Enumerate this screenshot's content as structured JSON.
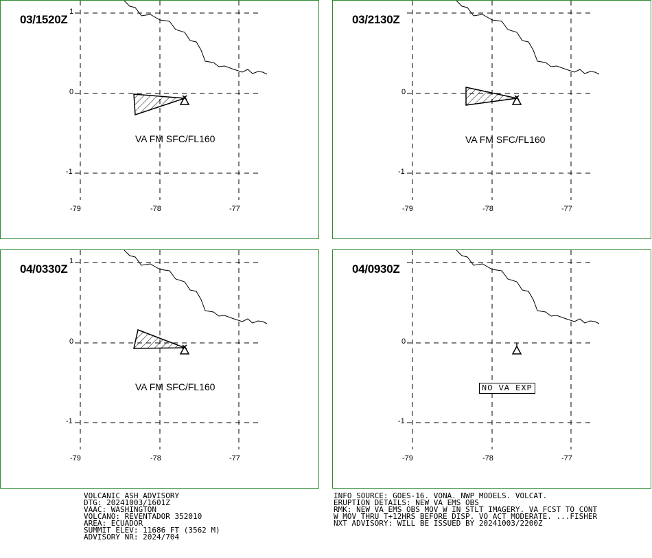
{
  "panels": [
    {
      "time": "03/1520Z",
      "label": "VA FM SFC/FL160",
      "plume": "tri1"
    },
    {
      "time": "03/2130Z",
      "label": "VA FM SFC/FL160",
      "plume": "tri2"
    },
    {
      "time": "04/0330Z",
      "label": "VA FM SFC/FL160",
      "plume": "tri3"
    },
    {
      "time": "04/0930Z",
      "label": "NO VA EXP",
      "plume": "none"
    }
  ],
  "axes": {
    "lat_labels": [
      "1",
      "0",
      "-1"
    ],
    "lon_labels": [
      "-79",
      "-78",
      "-77"
    ]
  },
  "advisory_left": [
    "VOLCANIC ASH ADVISORY",
    "DTG: 20241003/1601Z",
    "VAAC: WASHINGTON",
    "VOLCANO: REVENTADOR 352010",
    "AREA: ECUADOR",
    "SUMMIT ELEV: 11686 FT (3562 M)",
    "ADVISORY NR: 2024/704"
  ],
  "advisory_right": [
    "INFO SOURCE: GOES-16. VONA. NWP MODELS. VOLCAT.",
    "ERUPTION DETAILS: NEW VA EMS OBS",
    "RMK: NEW VA EMS OBS MOV W IN STLT IMAGERY. VA FCST TO CONT",
    "W MOV THRU T+12HRS BEFORE DISP. VO ACT MODERATE. ...FISHER",
    "NXT ADVISORY: WILL BE ISSUED BY 20241003/2200Z"
  ],
  "colors": {
    "frame": "#2e8b2e",
    "ink": "#000000"
  }
}
